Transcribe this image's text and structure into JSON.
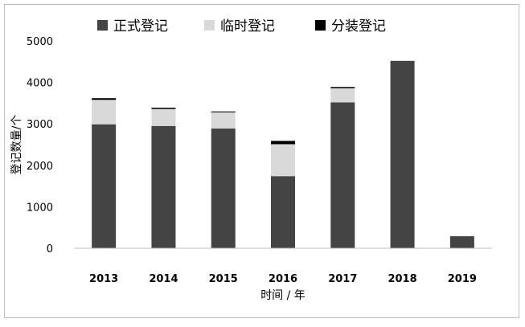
{
  "chart_data": {
    "type": "bar",
    "stacked": true,
    "categories": [
      "2013",
      "2014",
      "2015",
      "2016",
      "2017",
      "2018",
      "2019"
    ],
    "series": [
      {
        "name": "正式登记",
        "color": "#444444",
        "values": [
          2990,
          2950,
          2890,
          1740,
          3520,
          4520,
          290
        ]
      },
      {
        "name": "临时登记",
        "color": "#d9d9d9",
        "values": [
          590,
          410,
          390,
          770,
          340,
          0,
          0
        ]
      },
      {
        "name": "分装登记",
        "color": "#000000",
        "values": [
          40,
          30,
          20,
          80,
          30,
          0,
          0
        ]
      }
    ],
    "xlabel": "时间 / 年",
    "ylabel": "登记数量/个",
    "ylim": [
      0,
      5000
    ],
    "yticks": [
      "0",
      "1000",
      "2000",
      "3000",
      "4000",
      "5000"
    ],
    "ytick_values": [
      0,
      1000,
      2000,
      3000,
      4000,
      5000
    ],
    "grid": false,
    "legend_position": "top"
  }
}
